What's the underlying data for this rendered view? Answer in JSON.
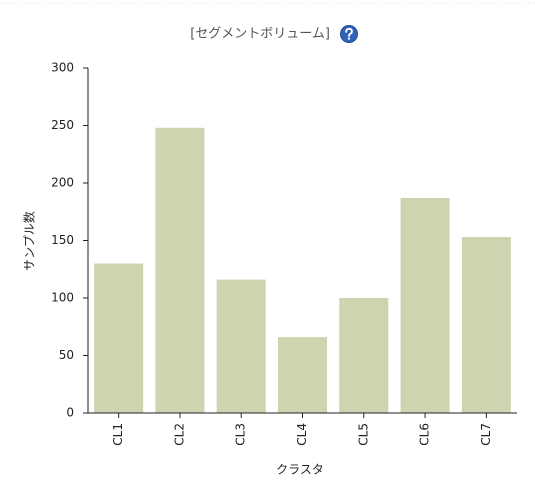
{
  "chart_data": {
    "type": "bar",
    "title": "[セグメントボリューム]",
    "x_label": "クラスタ",
    "y_label": "サンプル数",
    "categories": [
      "CL1",
      "CL2",
      "CL3",
      "CL4",
      "CL5",
      "CL6",
      "CL7"
    ],
    "values": [
      130,
      248,
      116,
      66,
      100,
      187,
      153
    ],
    "color": "#cdd4b0",
    "ylim": [
      0,
      300
    ],
    "yticks": [
      0,
      50,
      100,
      150,
      200,
      250,
      300
    ],
    "grid": false
  }
}
